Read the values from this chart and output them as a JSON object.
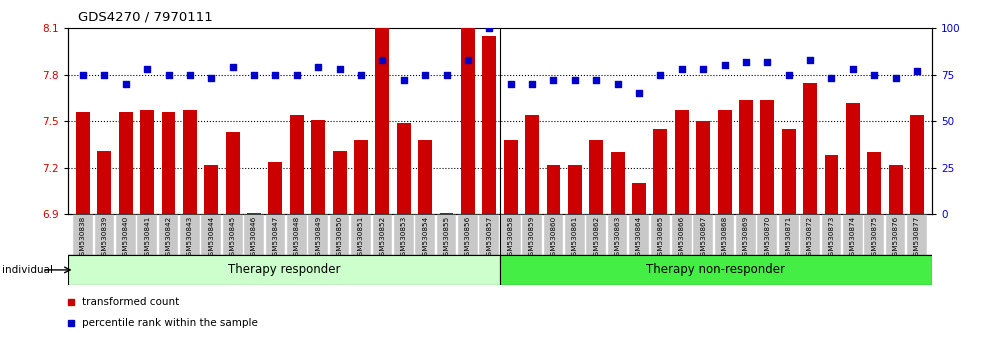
{
  "title": "GDS4270 / 7970111",
  "samples": [
    "GSM530838",
    "GSM530839",
    "GSM530840",
    "GSM530841",
    "GSM530842",
    "GSM530843",
    "GSM530844",
    "GSM530845",
    "GSM530846",
    "GSM530847",
    "GSM530848",
    "GSM530849",
    "GSM530850",
    "GSM530851",
    "GSM530852",
    "GSM530853",
    "GSM530854",
    "GSM530855",
    "GSM530856",
    "GSM530857",
    "GSM530858",
    "GSM530859",
    "GSM530860",
    "GSM530861",
    "GSM530862",
    "GSM530863",
    "GSM530864",
    "GSM530865",
    "GSM530866",
    "GSM530867",
    "GSM530868",
    "GSM530869",
    "GSM530870",
    "GSM530871",
    "GSM530872",
    "GSM530873",
    "GSM530874",
    "GSM530875",
    "GSM530876",
    "GSM530877"
  ],
  "bar_values": [
    7.56,
    7.31,
    7.56,
    7.57,
    7.56,
    7.57,
    7.22,
    7.43,
    6.91,
    7.24,
    7.54,
    7.51,
    7.31,
    7.38,
    8.1,
    7.49,
    7.38,
    6.91,
    8.1,
    8.05,
    7.38,
    7.54,
    7.22,
    7.22,
    7.38,
    7.3,
    7.1,
    7.45,
    7.57,
    7.5,
    7.57,
    7.64,
    7.64,
    7.45,
    7.75,
    7.28,
    7.62,
    7.3,
    7.22,
    7.54
  ],
  "percentile_values": [
    75,
    75,
    70,
    78,
    75,
    75,
    73,
    79,
    75,
    75,
    75,
    79,
    78,
    75,
    83,
    72,
    75,
    75,
    83,
    100,
    70,
    70,
    72,
    72,
    72,
    70,
    65,
    75,
    78,
    78,
    80,
    82,
    82,
    75,
    83,
    73,
    78,
    75,
    73,
    77
  ],
  "group1_label": "Therapy responder",
  "group2_label": "Therapy non-responder",
  "group1_count": 20,
  "group2_count": 20,
  "left_ylim": [
    6.9,
    8.1
  ],
  "right_ylim": [
    0,
    100
  ],
  "left_yticks": [
    6.9,
    7.2,
    7.5,
    7.8,
    8.1
  ],
  "right_yticks": [
    0,
    25,
    50,
    75,
    100
  ],
  "bar_color": "#cc0000",
  "dot_color": "#0000cc",
  "group1_bg": "#ccffcc",
  "group2_bg": "#44ee44",
  "tick_bg": "#c8c8c8",
  "bar_bottom": 6.9,
  "legend_red_label": "transformed count",
  "legend_blue_label": "percentile rank within the sample",
  "individual_label": "individual"
}
